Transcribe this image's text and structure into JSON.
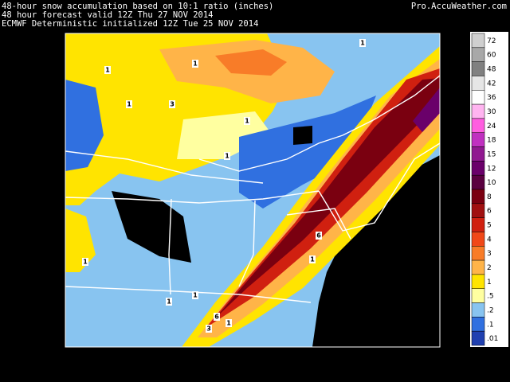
{
  "header": {
    "lines": [
      "48-hour snow accumulation based on 10:1 ratio (inches)",
      "48 hour forecast valid 12Z Thu 27 NOV 2014",
      "ECMWF Deterministic initialized 12Z Tue 25 NOV 2014"
    ],
    "credit": "Pro.AccuWeather.com"
  },
  "legend": [
    {
      "label": "72",
      "color": "#cfcfcf"
    },
    {
      "label": "60",
      "color": "#a8a8a8"
    },
    {
      "label": "48",
      "color": "#808080"
    },
    {
      "label": "42",
      "color": "#e6e6e6"
    },
    {
      "label": "36",
      "color": "#ffffff"
    },
    {
      "label": "30",
      "color": "#ffb4f0"
    },
    {
      "label": "24",
      "color": "#ff5ee0"
    },
    {
      "label": "18",
      "color": "#c030c0"
    },
    {
      "label": "15",
      "color": "#901890"
    },
    {
      "label": "12",
      "color": "#6a006a"
    },
    {
      "label": "10",
      "color": "#5a0040"
    },
    {
      "label": "8",
      "color": "#7a0010"
    },
    {
      "label": "6",
      "color": "#a01010"
    },
    {
      "label": "5",
      "color": "#d02010"
    },
    {
      "label": "4",
      "color": "#f04818"
    },
    {
      "label": "3",
      "color": "#f87c28"
    },
    {
      "label": "2",
      "color": "#ffb448"
    },
    {
      "label": "1",
      "color": "#ffe400"
    },
    {
      "label": ".5",
      "color": "#ffffa0"
    },
    {
      "label": ".2",
      "color": "#88c4f0"
    },
    {
      "label": ".1",
      "color": "#3070e0"
    },
    {
      "label": ".01",
      "color": "#2040b0"
    }
  ],
  "map": {
    "contour_labels": [
      "1",
      "1",
      "1",
      "1",
      "3",
      "1",
      "1",
      "6",
      "1",
      "1",
      "1",
      "1",
      "6",
      "3",
      "1"
    ]
  }
}
